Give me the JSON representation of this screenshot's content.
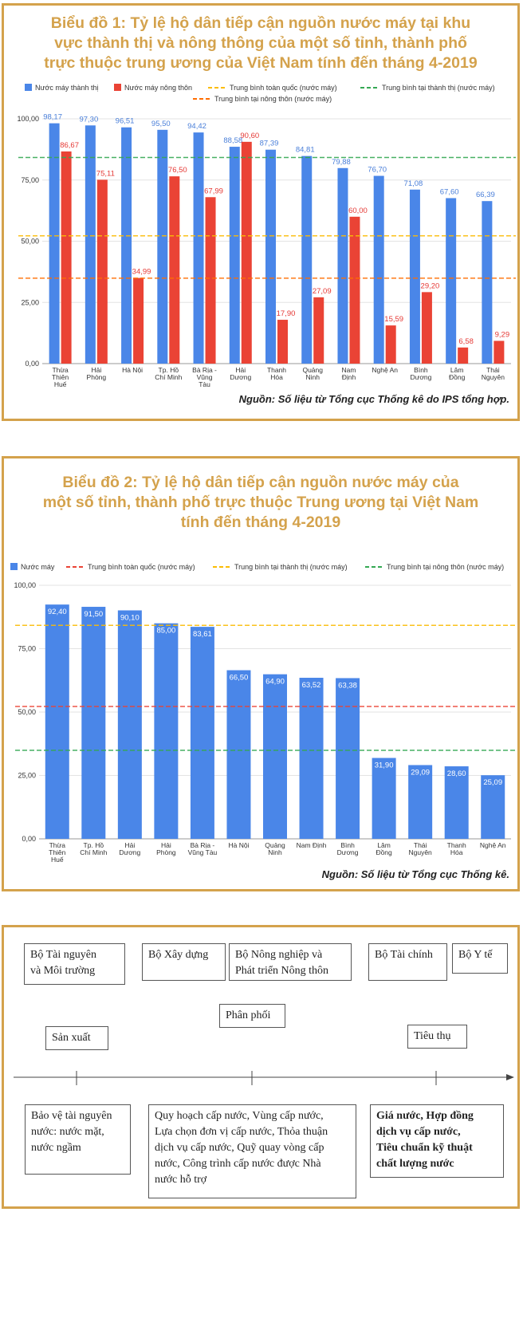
{
  "chart1": {
    "title_lines": [
      "Biểu đồ 1: Tỷ lệ hộ dân tiếp cận nguồn nước máy tại khu",
      "vực thành thị và nông thông của một số tỉnh, thành phố",
      "trực thuộc trung ương của Việt Nam tính đến tháng 4-2019"
    ],
    "source": "Nguồn: Số liệu từ Tổng cục Thống kê do IPS tổng hợp."
  },
  "chart2": {
    "title_lines": [
      "Biểu đồ 2: Tỷ lệ hộ dân tiếp cận nguồn nước máy của",
      "một số tỉnh, thành phố trực thuộc Trung ương tại Việt Nam",
      "tính đến tháng 4-2019"
    ],
    "source": "Nguồn: Số liệu từ Tổng cục Thống kê."
  },
  "chart_data": [
    {
      "type": "bar",
      "categories": [
        [
          "Thừa",
          "Thiên",
          "Huế"
        ],
        [
          "Hải",
          "Phòng"
        ],
        [
          "Hà Nội"
        ],
        [
          "Tp. Hồ",
          "Chí Minh"
        ],
        [
          "Bà Rịa -",
          "Vũng",
          "Tàu"
        ],
        [
          "Hải",
          "Dương"
        ],
        [
          "Thanh",
          "Hóa"
        ],
        [
          "Quảng",
          "Ninh"
        ],
        [
          "Nam",
          "Định"
        ],
        [
          "Nghệ An"
        ],
        [
          "Bình",
          "Dương"
        ],
        [
          "Lâm",
          "Đồng"
        ],
        [
          "Thái",
          "Nguyên"
        ]
      ],
      "series": [
        {
          "name": "Nước máy thành thị",
          "color": "#4a86e8",
          "values": [
            98.17,
            97.3,
            96.51,
            95.5,
            94.42,
            88.58,
            87.39,
            84.81,
            79.88,
            76.7,
            71.08,
            67.6,
            66.39
          ],
          "labels": [
            "98,17",
            "97,30",
            "96,51",
            "95,50",
            "94,42",
            "88,58",
            "87,39",
            "84,81",
            "79,88",
            "76,70",
            "71,08",
            "67,60",
            "66,39"
          ]
        },
        {
          "name": "Nước máy nông thôn",
          "color": "#ea4335",
          "values": [
            86.67,
            75.11,
            34.99,
            76.5,
            67.99,
            90.6,
            17.9,
            27.09,
            60.0,
            15.59,
            29.2,
            6.58,
            9.29
          ],
          "labels": [
            "86,67",
            "75,11",
            "34,99",
            "76,50",
            "67,99",
            "90,60",
            "17,90",
            "27,09",
            "60,00",
            "15,59",
            "29,20",
            "6,58",
            "9,29"
          ]
        }
      ],
      "reference_lines": [
        {
          "name": "Trung bình toàn quốc (nước máy)",
          "color": "#fbbc04",
          "value": 52.2
        },
        {
          "name": "Trung bình tại thành thị (nước máy)",
          "color": "#34a853",
          "value": 84.2
        },
        {
          "name": "Trung bình tại nông thôn (nước máy)",
          "color": "#ff6d01",
          "value": 34.9
        }
      ],
      "ylim": [
        0,
        100
      ],
      "yticks": [
        "0,00",
        "25,00",
        "50,00",
        "75,00",
        "100,00"
      ],
      "legend_position": "top"
    },
    {
      "type": "bar",
      "categories": [
        [
          "Thừa",
          "Thiên",
          "Huế"
        ],
        [
          "Tp. Hồ",
          "Chí Minh"
        ],
        [
          "Hải",
          "Dương"
        ],
        [
          "Hải",
          "Phòng"
        ],
        [
          "Bà Rịa -",
          "Vũng Tàu"
        ],
        [
          "Hà Nội"
        ],
        [
          "Quảng",
          "Ninh"
        ],
        [
          "Nam Định"
        ],
        [
          "Bình",
          "Dương"
        ],
        [
          "Lâm",
          "Đồng"
        ],
        [
          "Thái",
          "Nguyên"
        ],
        [
          "Thanh",
          "Hóa"
        ],
        [
          "Nghệ An"
        ]
      ],
      "series": [
        {
          "name": "Nước máy",
          "color": "#4a86e8",
          "values": [
            92.4,
            91.5,
            90.1,
            85.0,
            83.61,
            66.5,
            64.9,
            63.52,
            63.38,
            31.9,
            29.09,
            28.6,
            25.09
          ],
          "labels": [
            "92,40",
            "91,50",
            "90,10",
            "85,00",
            "83,61",
            "66,50",
            "64,90",
            "63,52",
            "63,38",
            "31,90",
            "29,09",
            "28,60",
            "25,09"
          ]
        }
      ],
      "reference_lines": [
        {
          "name": "Trung bình toàn quốc (nước máy)",
          "color": "#ea4335",
          "value": 52.2
        },
        {
          "name": "Trung bình tại thành thị (nước máy)",
          "color": "#fbbc04",
          "value": 84.2
        },
        {
          "name": "Trung bình tại nông thôn (nước máy)",
          "color": "#34a853",
          "value": 34.9
        }
      ],
      "ylim": [
        0,
        100
      ],
      "yticks": [
        "0,00",
        "25,00",
        "50,00",
        "75,00",
        "100,00"
      ],
      "legend_position": "top"
    }
  ],
  "diagram": {
    "ministries": [
      {
        "lines": [
          "Bộ Tài nguyên",
          "và Môi trường"
        ]
      },
      {
        "lines": [
          "Bộ Xây dựng"
        ]
      },
      {
        "lines": [
          "Bộ Nông nghiệp và",
          "Phát triển Nông thôn"
        ]
      },
      {
        "lines": [
          "Bộ Tài chính"
        ]
      },
      {
        "lines": [
          "Bộ Y tế"
        ]
      }
    ],
    "stages": [
      {
        "label": "Sản xuất"
      },
      {
        "label": "Phân phối"
      },
      {
        "label": "Tiêu thụ"
      }
    ],
    "details": [
      {
        "lines": [
          "Bảo vệ tài nguyên",
          "nước: nước mặt,",
          "nước ngầm"
        ]
      },
      {
        "lines": [
          "Quy hoạch cấp nước, Vùng cấp nước,",
          "Lựa chọn đơn vị cấp nước, Thỏa thuận",
          "dịch vụ cấp nước, Quỹ quay vòng cấp",
          "nước, Công trình cấp nước được Nhà",
          "nước hỗ trợ"
        ]
      },
      {
        "lines": [
          "Giá nước, Hợp đồng",
          "dịch vụ cấp nước,",
          "Tiêu chuẩn kỹ thuật",
          "chất lượng nước"
        ]
      }
    ]
  }
}
